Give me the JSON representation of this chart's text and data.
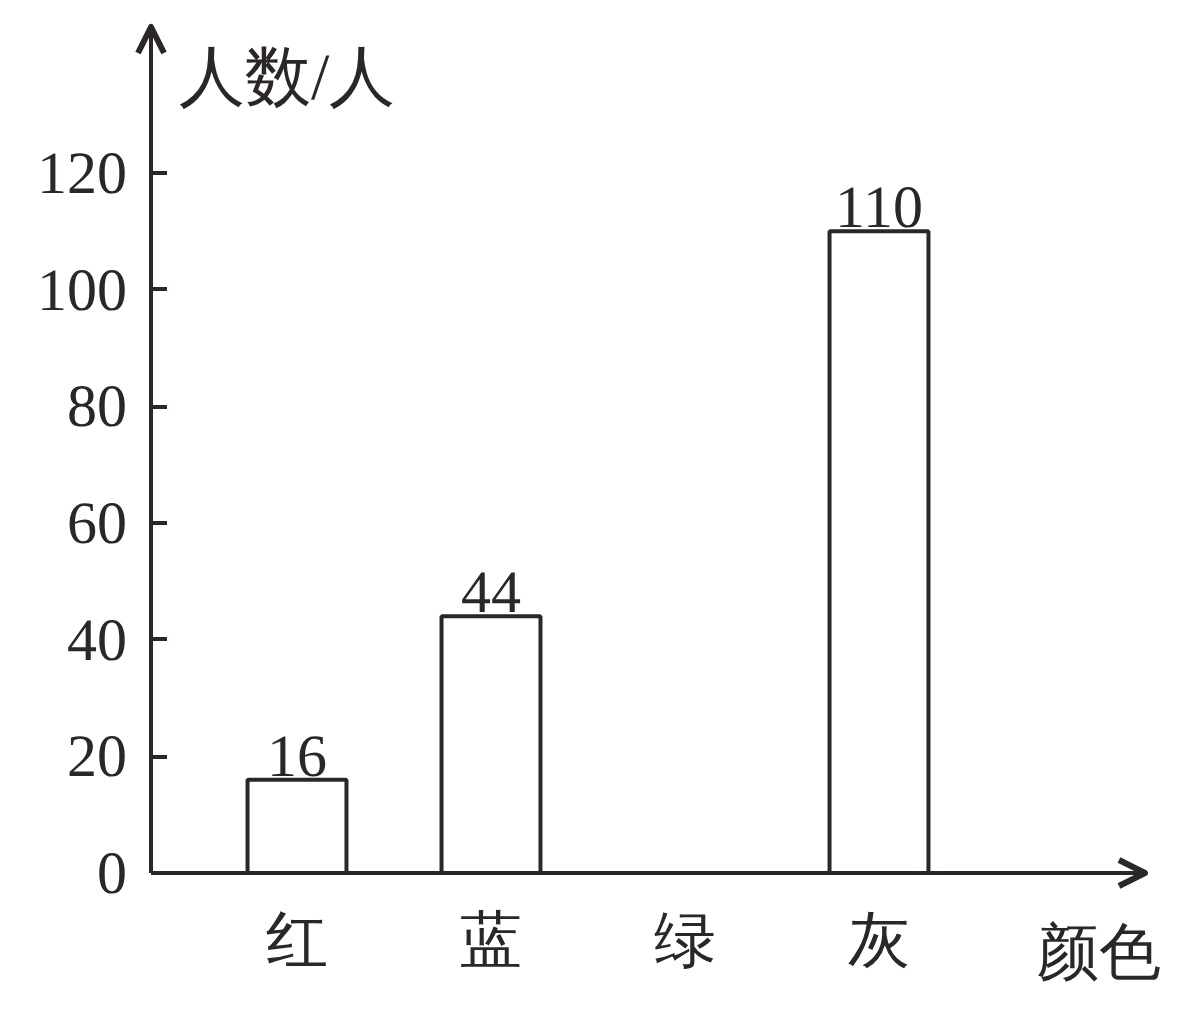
{
  "chart_data": {
    "type": "bar",
    "xlabel": "颜色",
    "ylabel": "人数/人",
    "categories": [
      "红",
      "蓝",
      "绿",
      "灰"
    ],
    "values": [
      16,
      44,
      null,
      110
    ],
    "color": "#ffffff",
    "ylim": [
      0,
      145
    ],
    "yticks": [
      0,
      20,
      40,
      60,
      80,
      100,
      120
    ],
    "data_labels": true
  }
}
